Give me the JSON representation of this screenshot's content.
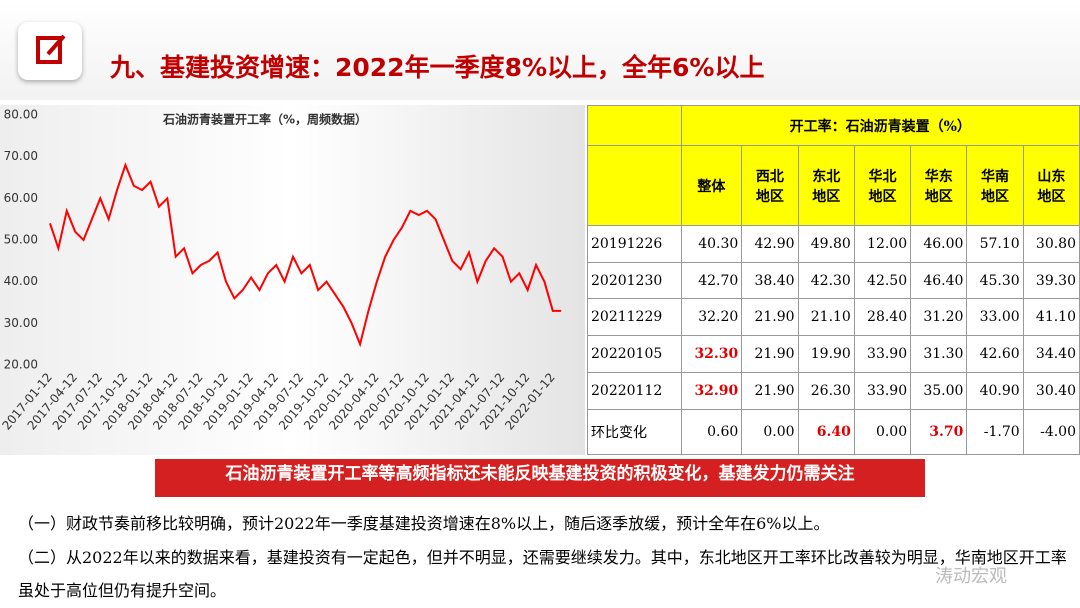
{
  "header": {
    "title": "九、基建投资增速：2022年一季度8%以上，全年6%以上"
  },
  "chart_data": {
    "type": "line",
    "title": "石油沥青装置开工率（%，周频数据）",
    "categories": [
      "2017-01-12",
      null,
      null,
      "2017-04-12",
      null,
      null,
      "2017-07-12",
      null,
      null,
      "2017-10-12",
      null,
      null,
      "2018-01-12",
      null,
      null,
      "2018-04-12",
      null,
      null,
      "2018-07-12",
      null,
      null,
      "2018-10-12",
      null,
      null,
      "2019-01-12",
      null,
      null,
      "2019-04-12",
      null,
      null,
      "2019-07-12",
      null,
      null,
      "2019-10-12",
      null,
      null,
      "2020-01-12",
      null,
      null,
      "2020-04-12",
      null,
      null,
      "2020-07-12",
      null,
      null,
      "2020-10-12",
      null,
      null,
      "2021-01-12",
      null,
      null,
      "2021-04-12",
      null,
      null,
      "2021-07-12",
      null,
      null,
      "2021-10-12",
      null,
      null,
      "2022-01-12",
      null
    ],
    "series": [
      {
        "color": "#ff0000",
        "values": [
          54,
          48,
          57,
          52,
          50,
          55,
          60,
          55,
          62,
          68,
          63,
          62,
          64,
          58,
          60,
          46,
          48,
          42,
          44,
          45,
          47,
          40,
          36,
          38,
          41,
          38,
          42,
          44,
          40,
          46,
          42,
          44,
          38,
          40,
          37,
          34,
          30,
          25,
          33,
          40,
          46,
          50,
          53,
          57,
          56,
          57,
          55,
          50,
          45,
          43,
          47,
          40,
          45,
          48,
          46,
          40,
          42,
          38,
          44,
          40,
          33,
          33
        ]
      }
    ],
    "ylim": [
      20,
      80
    ],
    "yticks": [
      {
        "value": 20,
        "label": "20.00"
      },
      {
        "value": 30,
        "label": "30.00"
      },
      {
        "value": 40,
        "label": "40.00"
      },
      {
        "value": 50,
        "label": "50.00"
      },
      {
        "value": 60,
        "label": "60.00"
      },
      {
        "value": 70,
        "label": "70.00"
      },
      {
        "value": 80,
        "label": "80.00"
      }
    ]
  },
  "table": {
    "title": "开工率：石油沥青装置（%）",
    "columns": [
      "整体",
      "西北\n地区",
      "东北\n地区",
      "华北\n地区",
      "华东\n地区",
      "华南\n地区",
      "山东\n地区"
    ],
    "rows": [
      [
        "20191226",
        "40.30",
        "42.90",
        "49.80",
        "12.00",
        "46.00",
        "57.10",
        "30.80"
      ],
      [
        "20201230",
        "42.70",
        "38.40",
        "42.30",
        "42.50",
        "46.40",
        "45.30",
        "39.30"
      ],
      [
        "20211229",
        "32.20",
        "21.90",
        "21.10",
        "28.40",
        "31.20",
        "33.00",
        "41.10"
      ],
      [
        "20220105",
        "32.30",
        "21.90",
        "19.90",
        "33.90",
        "31.30",
        "42.60",
        "34.40"
      ],
      [
        "20220112",
        "32.90",
        "21.90",
        "26.30",
        "33.90",
        "35.00",
        "40.90",
        "30.40"
      ],
      [
        "环比变化",
        "0.60",
        "0.00",
        "6.40",
        "0.00",
        "3.70",
        "-1.70",
        "-4.00"
      ]
    ],
    "emphasis_color": "#e00000",
    "emphasis": [
      [
        3,
        1
      ],
      [
        4,
        1
      ],
      [
        5,
        3
      ],
      [
        5,
        5
      ]
    ]
  },
  "banner": "石油沥青装置开工率等高频指标还未能反映基建投资的积极变化，基建发力仍需关注",
  "paragraphs": [
    "（一）财政节奏前移比较明确，预计2022年一季度基建投资增速在8%以上，随后逐季放缓，预计全年在6%以上。",
    "（二）从2022年以来的数据来看，基建投资有一定起色，但并不明显，还需要继续发力。其中，东北地区开工率环比改善较为明显，华南地区开工率虽处于高位但仍有提升空间。"
  ],
  "watermark": "涛动宏观"
}
